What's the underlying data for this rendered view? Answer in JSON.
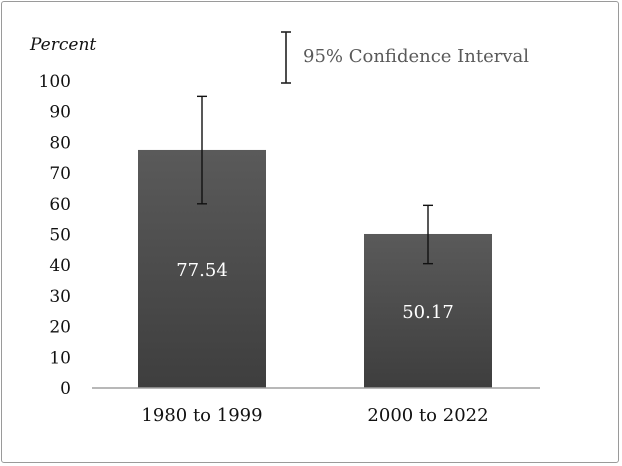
{
  "chart_data": {
    "type": "bar",
    "title": "",
    "xlabel": "",
    "ylabel": "Percent",
    "ylim": [
      0,
      100
    ],
    "yticks": [
      0,
      10,
      20,
      30,
      40,
      50,
      60,
      70,
      80,
      90,
      100
    ],
    "categories": [
      "1980 to 1999",
      "2000 to 2022"
    ],
    "series": [
      {
        "values": [
          77.54,
          50.17
        ],
        "ci_low": [
          60,
          40.5
        ],
        "ci_high": [
          95,
          59.5
        ],
        "color": "#4a4a4a"
      }
    ],
    "data_labels": [
      "77.54",
      "50.17"
    ],
    "legend": {
      "label": "95% Confidence Interval",
      "position": "top-right"
    },
    "grid": false
  }
}
